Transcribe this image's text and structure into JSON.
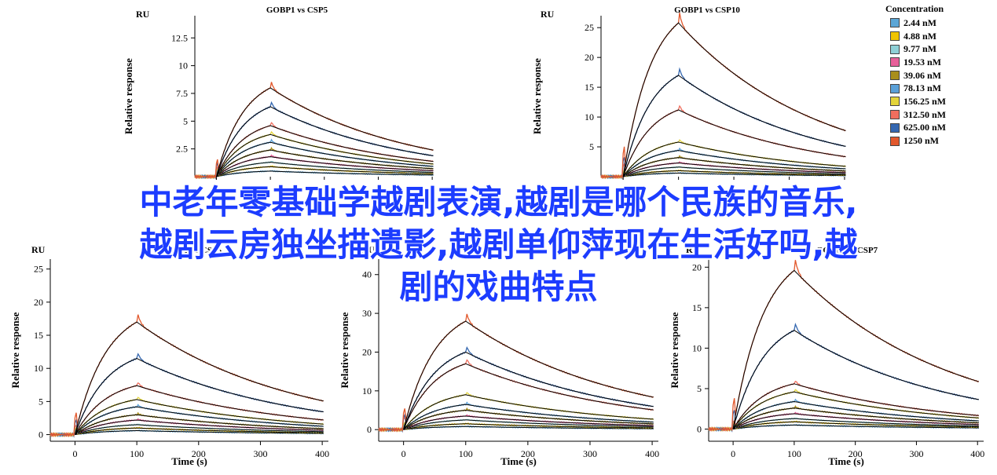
{
  "colors": [
    "#5ba6d6",
    "#f0c400",
    "#8fd0d6",
    "#e8609a",
    "#a88e1c",
    "#5aa0d8",
    "#e3d43a",
    "#ef6e5e",
    "#3467b0",
    "#e2582c"
  ],
  "legend": {
    "title": "Concentration",
    "items": [
      "2.44 nM",
      "4.88 nM",
      "9.77 nM",
      "19.53 nM",
      "39.06 nM",
      "78.13 nM",
      "156.25 nM",
      "312.50 nM",
      "625.00 nM",
      "1250 nM"
    ]
  },
  "overlay": {
    "line1": "中老年零基础学越剧表演,越剧是哪个民族的音乐,",
    "line2": "越剧云房独坐描遗影,越剧单仰萍现在生活好吗,越",
    "line3": "剧的戏曲特点"
  },
  "chart_data": [
    {
      "type": "line",
      "title": "GOBP1 vs CSP5",
      "unit_label": "RU",
      "xlabel": "Time (s)",
      "ylabel": "Relative response",
      "xlim": [
        -40,
        410
      ],
      "ylim": [
        0,
        14.5
      ],
      "xticks": [
        0,
        100,
        200,
        300,
        400
      ],
      "yticks": [
        2.5,
        5,
        7.5,
        10,
        12.5
      ],
      "series_rmax": [
        0.5,
        0.9,
        1.3,
        1.8,
        2.4,
        3.1,
        3.8,
        4.6,
        6.3,
        8.0
      ],
      "fitted_line_color": "#000000",
      "series_colors": "colors"
    },
    {
      "type": "line",
      "title": "GOBP1 vs CSP10",
      "unit_label": "RU",
      "xlabel": "Time (s)",
      "ylabel": "Relative response",
      "xlim": [
        -40,
        410
      ],
      "ylim": [
        0,
        27
      ],
      "xticks": [
        0,
        100,
        200,
        300,
        400
      ],
      "yticks": [
        5,
        10,
        15,
        20,
        25
      ],
      "series_rmax": [
        0.6,
        1.0,
        1.6,
        2.3,
        3.2,
        4.4,
        5.8,
        11.2,
        17.0,
        25.8
      ],
      "fitted_line_color": "#000000",
      "series_colors": "colors"
    },
    {
      "type": "line",
      "title": "GOBP2 vs CSP5",
      "unit_label": "RU",
      "xlabel": "Time (s)",
      "ylabel": "Relative response",
      "xlim": [
        -40,
        410
      ],
      "ylim": [
        -1,
        26.5
      ],
      "xticks": [
        0,
        100,
        200,
        300,
        400
      ],
      "yticks": [
        0,
        5,
        10,
        15,
        20,
        25
      ],
      "series_rmax": [
        0.6,
        1.0,
        1.5,
        2.2,
        3.0,
        4.2,
        5.3,
        7.4,
        11.5,
        17.0
      ],
      "fitted_line_color": "#000000",
      "series_colors": "colors"
    },
    {
      "type": "line",
      "title": "",
      "unit_label": "RU",
      "xlabel": "Time (s)",
      "ylabel": "Relative response",
      "xlim": [
        -40,
        410
      ],
      "ylim": [
        -3,
        44
      ],
      "xticks": [
        0,
        100,
        200,
        300,
        400
      ],
      "yticks": [
        0,
        10,
        20,
        30,
        40
      ],
      "series_rmax": [
        0.8,
        1.5,
        2.5,
        3.5,
        5.0,
        6.5,
        9.0,
        17.0,
        20.0,
        28.0
      ],
      "fitted_line_color": "#000000",
      "series_colors": "colors"
    },
    {
      "type": "line",
      "title": "GOBP2 vs CSP7",
      "unit_label": "RU",
      "xlabel": "Time (s)",
      "ylabel": "Relative response",
      "xlim": [
        -40,
        410
      ],
      "ylim": [
        -1.5,
        21
      ],
      "xticks": [
        0,
        100,
        200,
        300,
        400
      ],
      "yticks": [
        0,
        5,
        10,
        15,
        20
      ],
      "series_rmax": [
        0.5,
        0.9,
        1.3,
        1.9,
        2.6,
        3.4,
        4.6,
        5.6,
        12.2,
        19.6
      ],
      "fitted_line_color": "#000000",
      "series_colors": "colors"
    }
  ]
}
